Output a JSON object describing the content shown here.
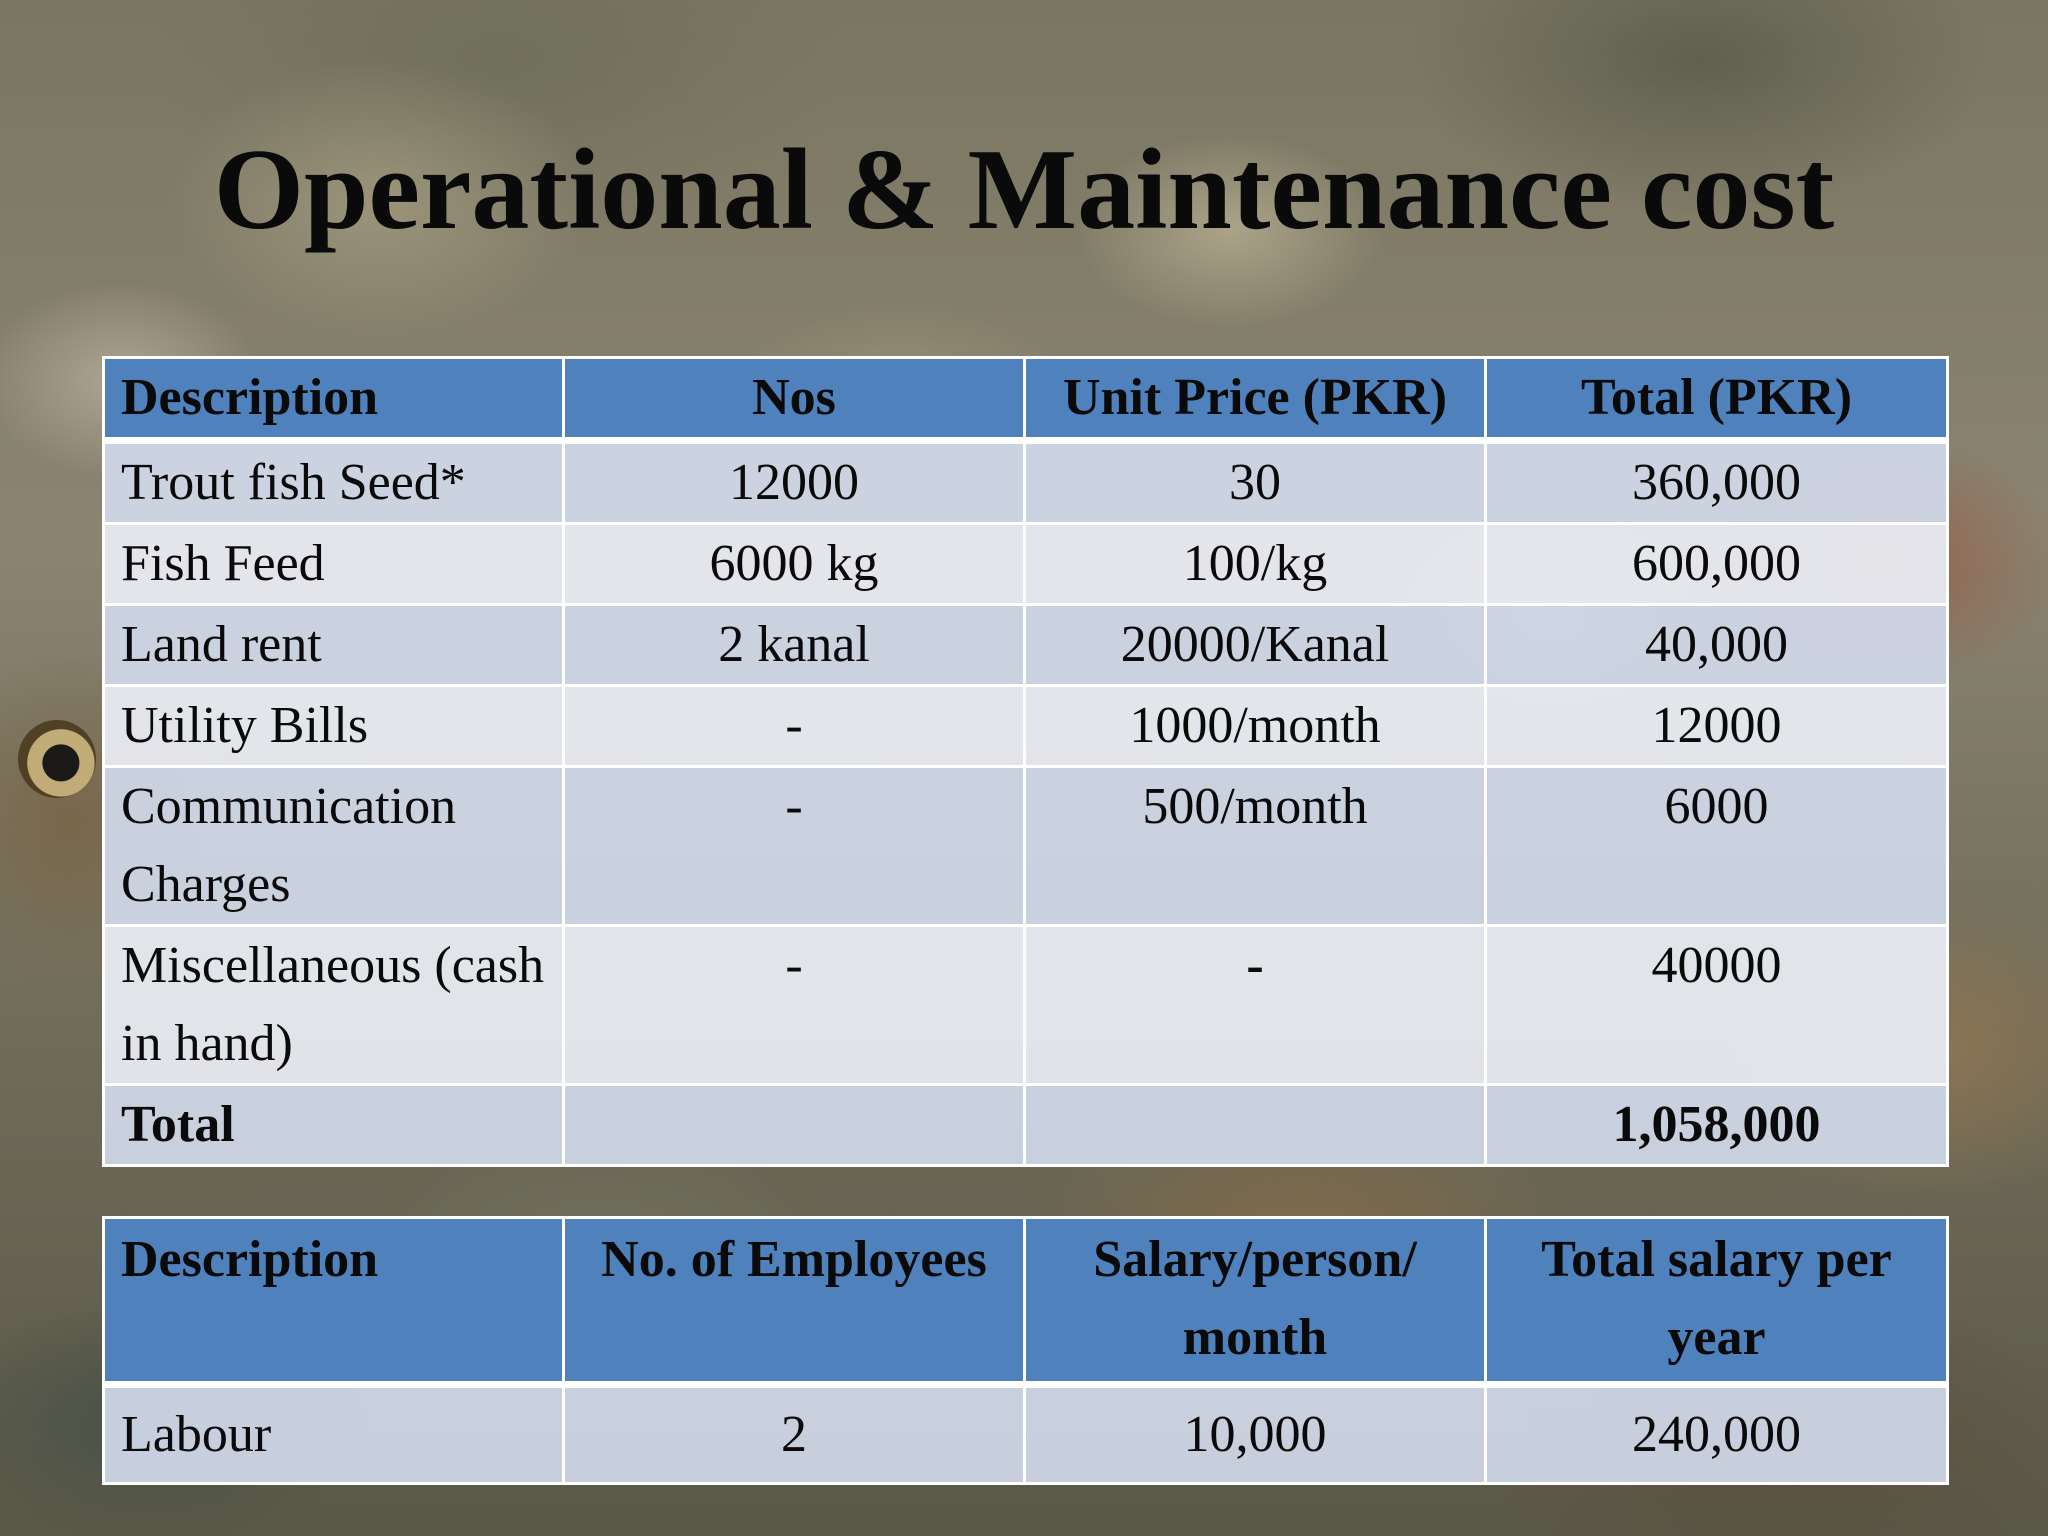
{
  "title": "Operational & Maintenance cost",
  "cost_table": {
    "headers": [
      "Description",
      "Nos",
      "Unit Price (PKR)",
      "Total (PKR)"
    ],
    "rows": [
      {
        "description": "Trout fish Seed*",
        "nos": "12000",
        "unit_price": "30",
        "total": "360,000"
      },
      {
        "description": "Fish Feed",
        "nos": "6000 kg",
        "unit_price": "100/kg",
        "total": "600,000"
      },
      {
        "description": "Land rent",
        "nos": "2 kanal",
        "unit_price": "20000/Kanal",
        "total": "40,000"
      },
      {
        "description": "Utility Bills",
        "nos": "-",
        "unit_price": "1000/month",
        "total": "12000"
      },
      {
        "description": "Communication Charges",
        "nos": "-",
        "unit_price": "500/month",
        "total": "6000"
      },
      {
        "description": "Miscellaneous (cash in hand)",
        "nos": "-",
        "unit_price": "-",
        "total": "40000"
      }
    ],
    "total_row": {
      "label": "Total",
      "nos": "",
      "unit_price": "",
      "total": "1,058,000"
    }
  },
  "salary_table": {
    "headers": [
      "Description",
      "No. of Employees",
      "Salary/person/ month",
      "Total salary per year"
    ],
    "rows": [
      {
        "description": "Labour",
        "employees": "2",
        "salary": "10,000",
        "total": "240,000"
      }
    ]
  }
}
